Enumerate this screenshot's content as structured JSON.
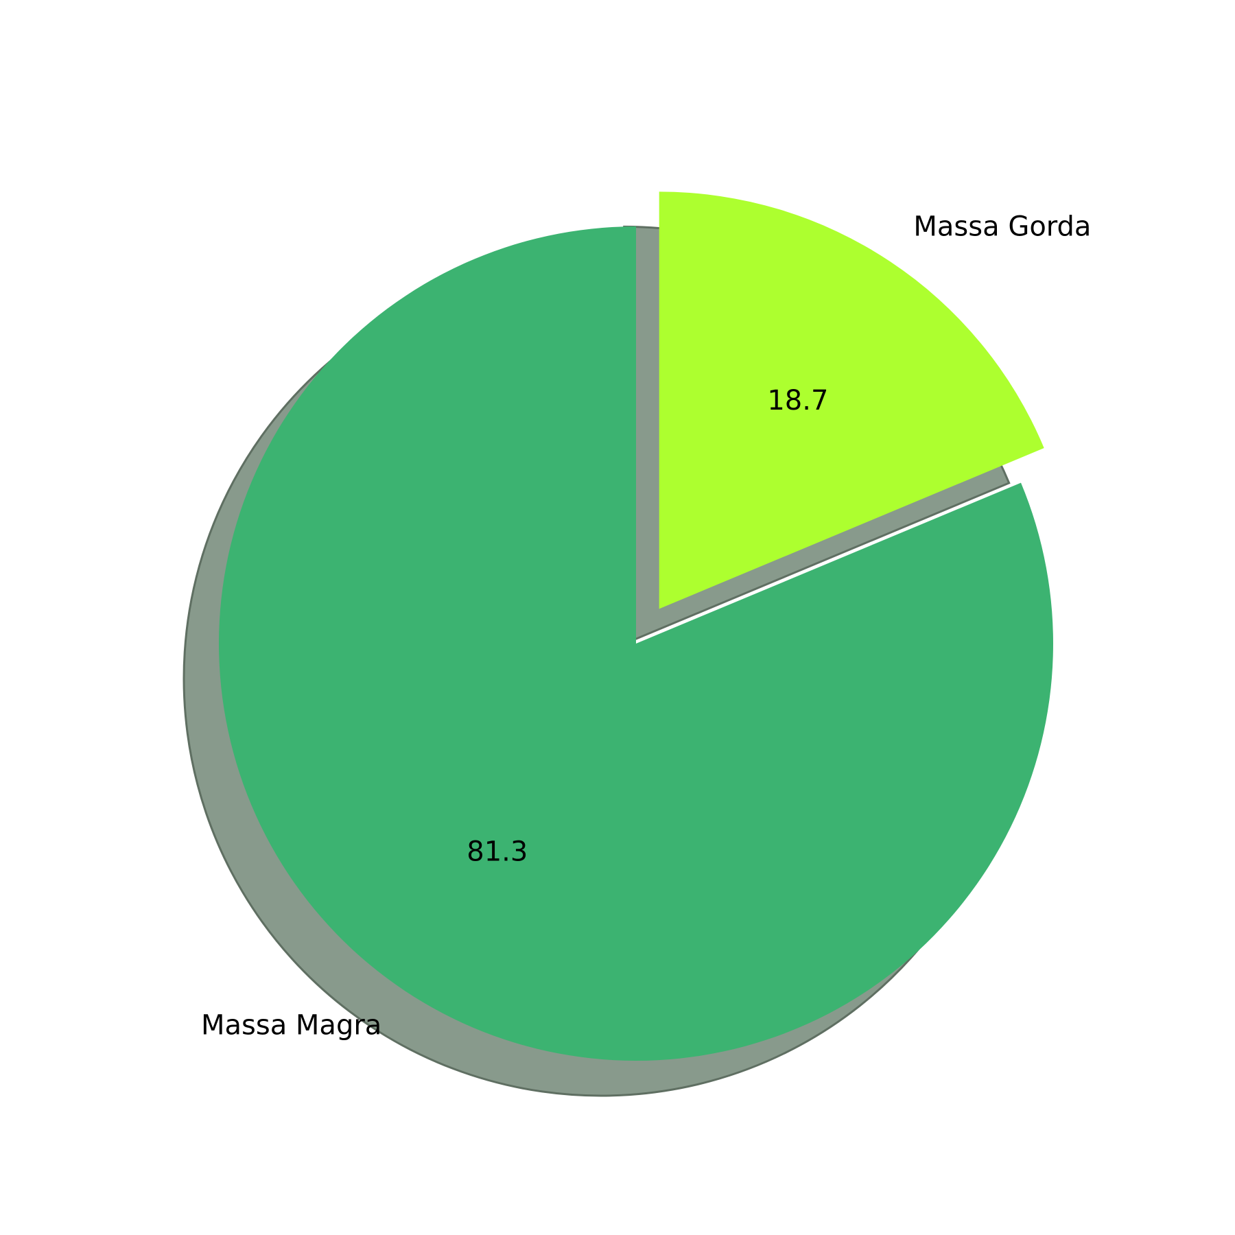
{
  "chart_data": {
    "type": "pie",
    "slices": [
      {
        "label": "Massa Magra",
        "value": 81.3,
        "pct_label": "81.3",
        "color": "#3cb371",
        "exploded": false
      },
      {
        "label": "Massa Gorda",
        "value": 18.7,
        "pct_label": "18.7",
        "color": "#adff2f",
        "exploded": true
      }
    ],
    "shadow": true,
    "shadow_color": "#889a8c",
    "start_angle": "90",
    "direction": "counterclockwise"
  }
}
